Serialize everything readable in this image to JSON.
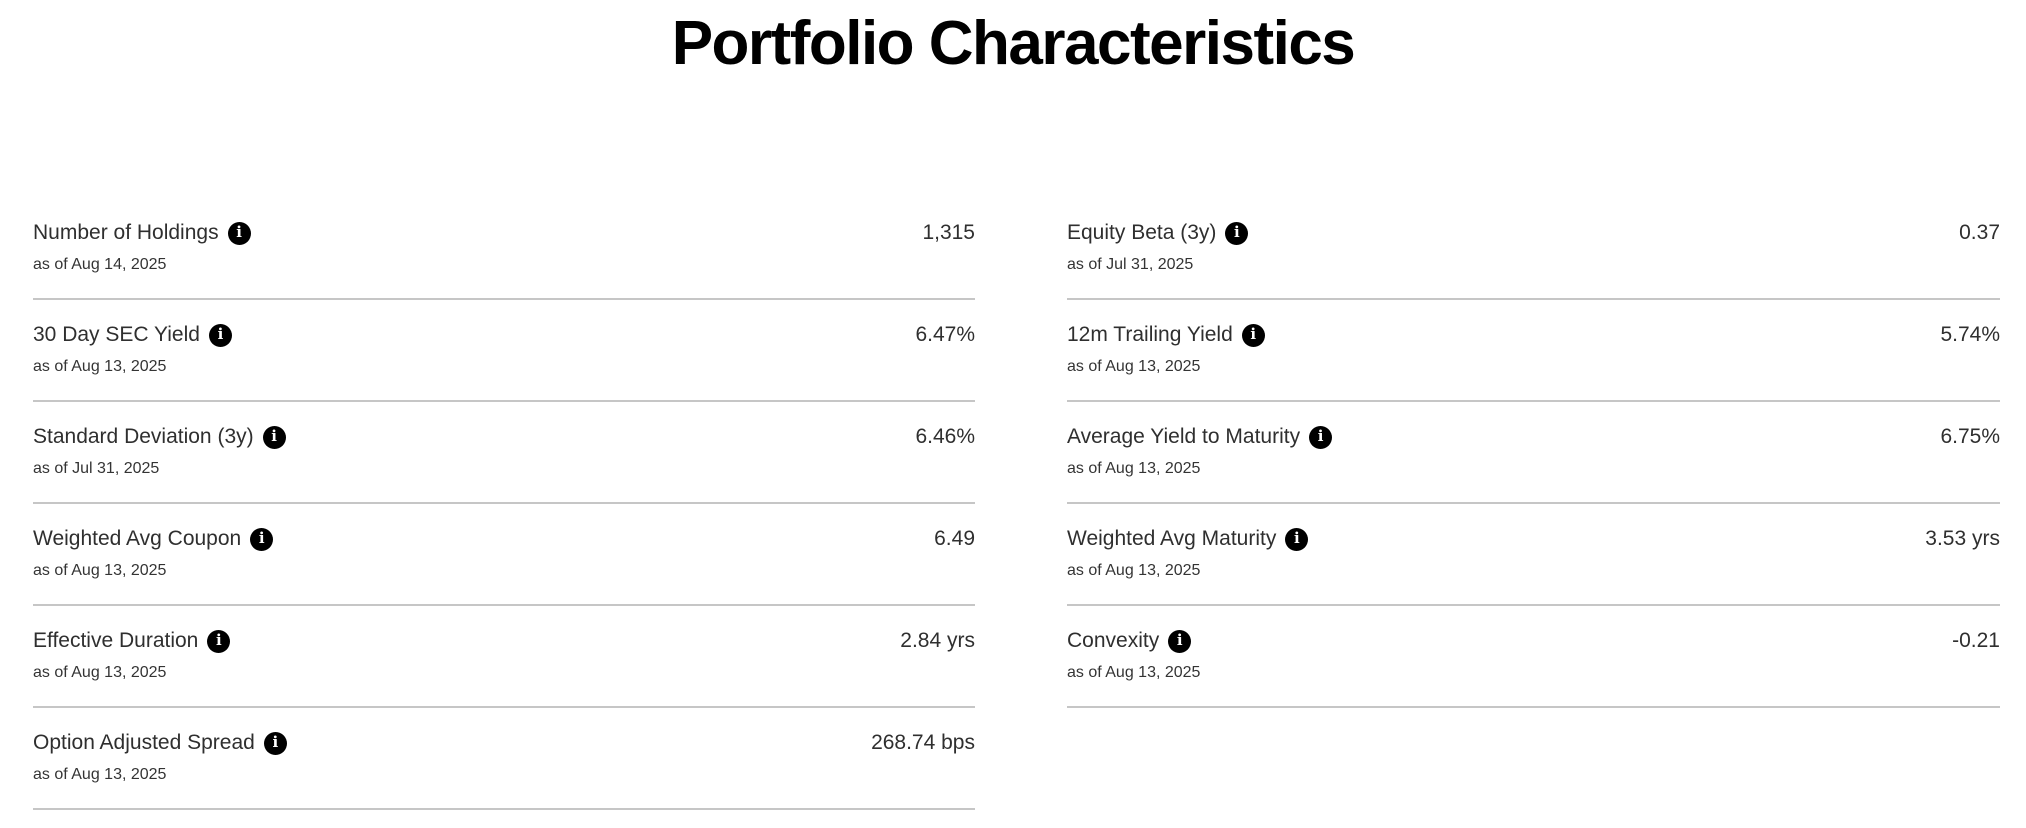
{
  "page": {
    "title": "Portfolio Characteristics"
  },
  "icons": {
    "info_glyph": "i"
  },
  "colors": {
    "background": "#ffffff",
    "title_text": "#000000",
    "label_text": "#2f2f2f",
    "value_text": "#2f2f2f",
    "date_text": "#343434",
    "divider": "#c6c6c6",
    "info_icon_bg": "#000000",
    "info_icon_fg": "#ffffff"
  },
  "metrics": {
    "left": [
      {
        "label": "Number of Holdings",
        "as_of": "as of Aug 14, 2025",
        "value": "1,315"
      },
      {
        "label": "30 Day SEC Yield",
        "as_of": "as of Aug 13, 2025",
        "value": "6.47%"
      },
      {
        "label": "Standard Deviation (3y)",
        "as_of": "as of Jul 31, 2025",
        "value": "6.46%"
      },
      {
        "label": "Weighted Avg Coupon",
        "as_of": "as of Aug 13, 2025",
        "value": "6.49"
      },
      {
        "label": "Effective Duration",
        "as_of": "as of Aug 13, 2025",
        "value": "2.84 yrs"
      },
      {
        "label": "Option Adjusted Spread",
        "as_of": "as of Aug 13, 2025",
        "value": "268.74 bps"
      }
    ],
    "right": [
      {
        "label": "Equity Beta (3y)",
        "as_of": "as of Jul 31, 2025",
        "value": "0.37"
      },
      {
        "label": "12m Trailing Yield",
        "as_of": "as of Aug 13, 2025",
        "value": "5.74%"
      },
      {
        "label": "Average Yield to Maturity",
        "as_of": "as of Aug 13, 2025",
        "value": "6.75%"
      },
      {
        "label": "Weighted Avg Maturity",
        "as_of": "as of Aug 13, 2025",
        "value": "3.53 yrs"
      },
      {
        "label": "Convexity",
        "as_of": "as of Aug 13, 2025",
        "value": "-0.21"
      }
    ]
  }
}
